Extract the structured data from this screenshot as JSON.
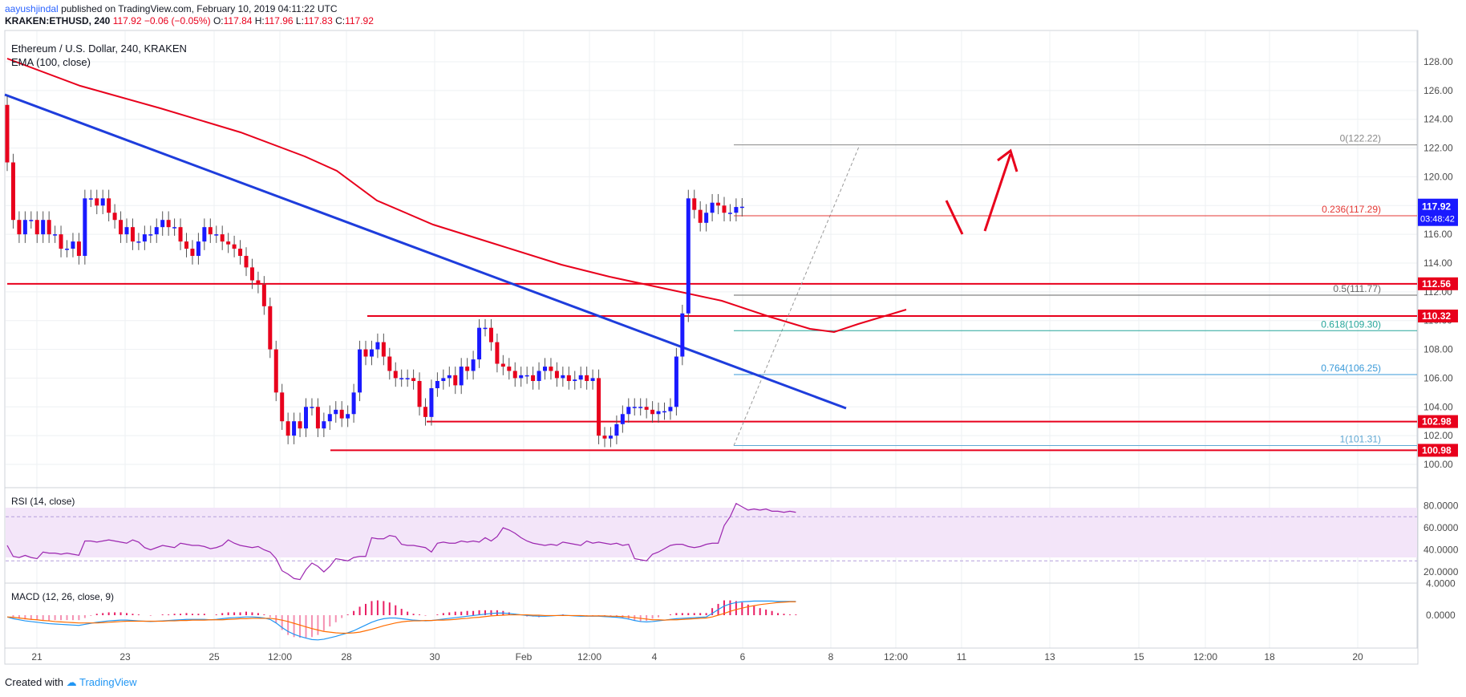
{
  "header": {
    "user": "aayushjindal",
    "published": "published on TradingView.com, February 10, 2019 04:11:22 UTC",
    "symbol": "KRAKEN:ETHUSD, 240",
    "last": "117.92",
    "change": "−0.06 (−0.05%)",
    "o_label": "O:",
    "o": "117.84",
    "h_label": "H:",
    "h": "117.96",
    "l_label": "L:",
    "l": "117.83",
    "c_label": "C:",
    "c": "117.92"
  },
  "legend": {
    "title": "Ethereum / U.S. Dollar, 240, KRAKEN",
    "ema": "EMA (100, close)"
  },
  "price_axis": {
    "ticks": [
      "128.00",
      "126.00",
      "124.00",
      "122.00",
      "120.00",
      "118.00",
      "116.00",
      "114.00",
      "112.00",
      "110.00",
      "108.00",
      "106.00",
      "104.00",
      "102.00",
      "100.00"
    ],
    "last_price_label": "117.92",
    "countdown_label": "03:48:42",
    "level_labels": [
      "112.56",
      "110.32",
      "102.98",
      "100.98"
    ]
  },
  "fib": [
    {
      "label": "0(122.22)",
      "value": 122.22,
      "color": "#888888"
    },
    {
      "label": "0.236(117.29)",
      "value": 117.29,
      "color": "#e53935"
    },
    {
      "label": "0.5(111.77)",
      "value": 111.77,
      "color": "#666666"
    },
    {
      "label": "0.618(109.30)",
      "value": 109.3,
      "color": "#26a69a"
    },
    {
      "label": "0.764(106.25)",
      "value": 106.25,
      "color": "#3a9ad9"
    },
    {
      "label": "1(101.31)",
      "value": 101.31,
      "color": "#5fa8d3"
    }
  ],
  "rsi": {
    "title": "RSI (14, close)",
    "ticks": [
      "80.0000",
      "60.0000",
      "40.0000",
      "20.0000"
    ],
    "values": [
      44,
      34,
      33,
      35,
      33,
      32,
      38,
      37,
      37,
      36,
      37,
      36,
      35,
      48,
      48,
      47,
      48,
      49,
      48,
      47,
      46,
      49,
      47,
      42,
      40,
      42,
      44,
      43,
      42,
      46,
      45,
      44,
      44,
      43,
      41,
      42,
      44,
      49,
      46,
      44,
      43,
      42,
      43,
      40,
      38,
      32,
      21,
      18,
      14,
      13,
      22,
      28,
      25,
      20,
      25,
      32,
      31,
      30,
      33,
      34,
      34,
      51,
      50,
      50,
      53,
      52,
      45,
      44,
      44,
      43,
      42,
      38,
      46,
      47,
      46,
      46,
      48,
      47,
      48,
      47,
      51,
      48,
      52,
      60,
      58,
      55,
      51,
      48,
      46,
      45,
      44,
      45,
      44,
      47,
      46,
      45,
      44,
      48,
      46,
      47,
      46,
      45,
      46,
      44,
      45,
      32,
      31,
      30,
      36,
      38,
      41,
      44,
      45,
      45,
      43,
      42,
      43,
      45,
      46,
      46,
      62,
      70,
      82,
      79,
      76,
      77,
      76,
      77,
      75,
      75,
      74,
      75,
      74
    ]
  },
  "macd": {
    "title": "MACD (12, 26, close, 9)",
    "ticks": [
      "4.0000",
      "0.0000"
    ],
    "macd": [
      -0.5,
      -1.0,
      -1.3,
      -1.6,
      -1.8,
      -2.0,
      -2.2,
      -2.4,
      -2.5,
      -2.6,
      -2.7,
      -2.8,
      -2.9,
      -2.6,
      -2.3,
      -2.0,
      -1.8,
      -1.6,
      -1.5,
      -1.4,
      -1.4,
      -1.5,
      -1.6,
      -1.7,
      -1.8,
      -1.7,
      -1.6,
      -1.5,
      -1.4,
      -1.3,
      -1.2,
      -1.2,
      -1.2,
      -1.2,
      -1.3,
      -1.2,
      -1.0,
      -0.8,
      -0.7,
      -0.6,
      -0.5,
      -0.5,
      -0.6,
      -0.8,
      -1.2,
      -2.2,
      -3.5,
      -4.6,
      -5.4,
      -6.0,
      -6.5,
      -6.9,
      -7.0,
      -6.8,
      -6.4,
      -6.0,
      -5.5,
      -5.0,
      -4.4,
      -3.6,
      -2.8,
      -2.0,
      -1.4,
      -1.0,
      -0.8,
      -0.8,
      -1.0,
      -1.2,
      -1.4,
      -1.5,
      -1.6,
      -1.5,
      -1.3,
      -1.1,
      -0.9,
      -0.7,
      -0.5,
      -0.3,
      -0.1,
      0.1,
      0.3,
      0.5,
      0.6,
      0.6,
      0.5,
      0.3,
      0.1,
      -0.1,
      -0.2,
      -0.3,
      -0.3,
      -0.2,
      -0.1,
      0.0,
      -0.1,
      -0.2,
      -0.3,
      -0.3,
      -0.3,
      -0.3,
      -0.4,
      -0.5,
      -0.6,
      -0.8,
      -1.1,
      -1.5,
      -1.8,
      -1.9,
      -1.8,
      -1.6,
      -1.4,
      -1.2,
      -1.0,
      -0.9,
      -0.8,
      -0.7,
      -0.6,
      -0.5,
      0.5,
      1.6,
      2.6,
      3.2,
      3.6,
      3.8,
      3.9,
      4.0,
      4.0,
      4.0,
      4.0,
      3.9,
      3.9,
      3.9,
      3.9
    ],
    "signal": [
      -0.5,
      -0.6,
      -0.8,
      -1.0,
      -1.2,
      -1.3,
      -1.5,
      -1.6,
      -1.8,
      -1.9,
      -2.0,
      -2.1,
      -2.2,
      -2.2,
      -2.2,
      -2.2,
      -2.1,
      -2.0,
      -1.9,
      -1.8,
      -1.7,
      -1.7,
      -1.7,
      -1.7,
      -1.7,
      -1.7,
      -1.7,
      -1.6,
      -1.6,
      -1.5,
      -1.5,
      -1.4,
      -1.4,
      -1.4,
      -1.3,
      -1.3,
      -1.3,
      -1.2,
      -1.1,
      -1.0,
      -1.0,
      -0.9,
      -0.9,
      -0.9,
      -0.9,
      -1.1,
      -1.4,
      -1.8,
      -2.3,
      -2.8,
      -3.3,
      -3.8,
      -4.2,
      -4.6,
      -4.8,
      -5.0,
      -5.1,
      -5.1,
      -5.0,
      -4.8,
      -4.4,
      -4.0,
      -3.5,
      -3.0,
      -2.6,
      -2.2,
      -1.9,
      -1.7,
      -1.6,
      -1.6,
      -1.5,
      -1.5,
      -1.4,
      -1.4,
      -1.3,
      -1.2,
      -1.0,
      -0.9,
      -0.7,
      -0.6,
      -0.4,
      -0.2,
      -0.1,
      0.0,
      0.1,
      0.1,
      0.1,
      0.1,
      0.0,
      0.0,
      -0.1,
      -0.1,
      -0.1,
      -0.1,
      -0.1,
      -0.1,
      -0.1,
      -0.2,
      -0.2,
      -0.2,
      -0.2,
      -0.3,
      -0.3,
      -0.4,
      -0.5,
      -0.7,
      -0.9,
      -1.1,
      -1.3,
      -1.3,
      -1.4,
      -1.3,
      -1.3,
      -1.2,
      -1.1,
      -1.0,
      -0.9,
      -0.8,
      -0.5,
      0.0,
      0.5,
      1.1,
      1.6,
      2.0,
      2.4,
      2.7,
      3.0,
      3.2,
      3.4,
      3.6,
      3.7,
      3.8,
      3.8
    ]
  },
  "x_axis": {
    "ticks": [
      "21",
      "23",
      "25",
      "12:00",
      "28",
      "30",
      "Feb",
      "12:00",
      "4",
      "6",
      "8",
      "12:00",
      "11",
      "13",
      "15",
      "12:00",
      "18",
      "20"
    ]
  },
  "footer": {
    "created": "Created with",
    "brand": "TradingView"
  },
  "colors": {
    "up": "#1a1aff",
    "down": "#e8001c",
    "ema": "#e8001c",
    "trend": "#1e3ddc",
    "level": "#e8001c",
    "rsi": "#9c27b0",
    "macd": "#2196f3",
    "signal": "#ff6d00"
  },
  "chart_data": {
    "type": "candlestick",
    "title": "Ethereum / U.S. Dollar, 240, KRAKEN",
    "ylim": [
      99,
      129
    ],
    "x_ticks": [
      "21",
      "23",
      "25",
      "12:00",
      "28",
      "30",
      "Feb",
      "12:00",
      "4",
      "6",
      "8",
      "12:00",
      "11",
      "13",
      "15",
      "12:00",
      "18",
      "20"
    ],
    "close": [
      121,
      117,
      116,
      117,
      117,
      116,
      117,
      116,
      116,
      115,
      115,
      115.5,
      114.5,
      118.5,
      118.5,
      118,
      118.5,
      117.5,
      117,
      116,
      116.5,
      115.5,
      115.5,
      116,
      116,
      116.5,
      117,
      116.5,
      116.5,
      115.5,
      115,
      114.5,
      115.5,
      116.5,
      116,
      116,
      115.5,
      115.3,
      115,
      114.5,
      113.7,
      112.8,
      112.5,
      111,
      108,
      105,
      103,
      102,
      103,
      102.5,
      104,
      104,
      102.5,
      103,
      103.5,
      103.8,
      103.2,
      103.5,
      105,
      108,
      107.5,
      108,
      108.5,
      107.5,
      106.5,
      106,
      106,
      106,
      105.8,
      104,
      103.3,
      105.3,
      105.8,
      106,
      106.2,
      105.5,
      106.8,
      106.5,
      107.3,
      109.5,
      109.5,
      108.5,
      107,
      106.8,
      106.5,
      106,
      106.2,
      106.2,
      105.8,
      106.5,
      106.8,
      106.5,
      106,
      106.2,
      105.8,
      105.9,
      106.2,
      105.8,
      106,
      102,
      101.8,
      102,
      102.8,
      103.5,
      104,
      104,
      104,
      103.8,
      103.5,
      103.7,
      103.7,
      104,
      107.5,
      110.5,
      118.5,
      117.7,
      116.8,
      117.5,
      118.2,
      118,
      117.5,
      117.5,
      117.9,
      117.92
    ],
    "open": [
      125,
      121,
      117,
      116,
      117,
      117,
      116,
      117,
      116,
      116,
      115,
      115,
      115.5,
      114.5,
      118.5,
      118.5,
      118,
      118.5,
      117.5,
      117,
      116,
      116.5,
      115.5,
      115.5,
      116,
      116,
      116.5,
      117,
      116.5,
      116.5,
      115.5,
      115,
      114.5,
      115.5,
      116.5,
      116,
      116,
      115.5,
      115.3,
      115,
      114.5,
      113.7,
      112.8,
      112.5,
      111,
      108,
      105,
      103,
      102,
      103,
      102.5,
      104,
      104,
      102.5,
      103,
      103.5,
      103.8,
      103.2,
      103.5,
      105,
      108,
      107.5,
      108,
      108.5,
      107.5,
      106.5,
      106,
      106,
      106,
      105.8,
      104,
      103.3,
      105.3,
      105.8,
      106,
      106.2,
      105.5,
      106.8,
      106.5,
      107.3,
      109.5,
      109.5,
      108.5,
      107,
      106.8,
      106.5,
      106,
      106.2,
      106.2,
      105.8,
      106.5,
      106.8,
      106.5,
      106,
      106.2,
      105.8,
      105.9,
      106.2,
      105.8,
      106,
      102,
      101.8,
      102,
      102.8,
      103.5,
      104,
      104,
      104,
      103.8,
      103.5,
      103.7,
      103.7,
      104,
      107.5,
      110.5,
      118.5,
      117.7,
      116.8,
      117.5,
      118.2,
      118,
      117.5,
      117.5,
      117.84
    ],
    "levels": [
      112.56,
      110.32,
      102.98,
      100.98
    ],
    "last": 117.92
  }
}
